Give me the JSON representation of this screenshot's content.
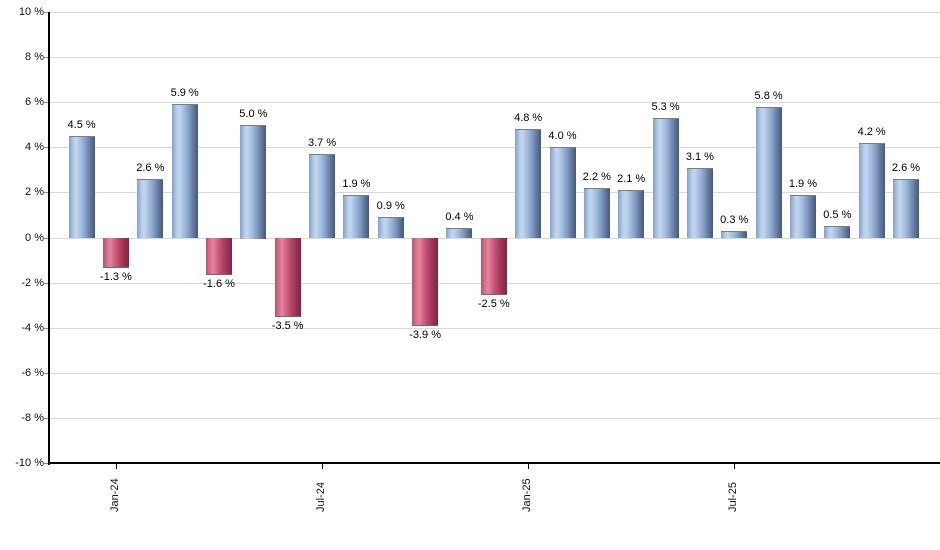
{
  "chart_data": {
    "type": "bar",
    "title": "",
    "xlabel": "",
    "ylabel": "",
    "unit": "%",
    "values": [
      4.5,
      -1.3,
      2.6,
      5.9,
      -1.6,
      5.0,
      -3.5,
      3.7,
      1.9,
      0.9,
      -3.9,
      0.4,
      -2.5,
      4.8,
      4.0,
      2.2,
      2.1,
      5.3,
      3.1,
      0.3,
      5.8,
      1.9,
      0.5,
      4.2,
      2.6
    ],
    "bar_labels": [
      "4.5 %",
      "-1.3 %",
      "2.6 %",
      "5.9 %",
      "-1.6 %",
      "5.0 %",
      "-3.5 %",
      "3.7 %",
      "1.9 %",
      "0.9 %",
      "-3.9 %",
      "0.4 %",
      "-2.5 %",
      "4.8 %",
      "4.0 %",
      "2.2 %",
      "2.1 %",
      "5.3 %",
      "3.1 %",
      "0.3 %",
      "5.8 %",
      "1.9 %",
      "0.5 %",
      "4.2 %",
      "2.6 %"
    ],
    "x_ticks": [
      {
        "label": "Jan-24",
        "bar_index": 1
      },
      {
        "label": "Jul-24",
        "bar_index": 7
      },
      {
        "label": "Jan-25",
        "bar_index": 13
      },
      {
        "label": "Jul-25",
        "bar_index": 19
      }
    ],
    "y_ticks": [
      {
        "label": "10 %",
        "value": 10
      },
      {
        "label": "8 %",
        "value": 8
      },
      {
        "label": "6 %",
        "value": 6
      },
      {
        "label": "4 %",
        "value": 4
      },
      {
        "label": "2 %",
        "value": 2
      },
      {
        "label": "0 %",
        "value": 0
      },
      {
        "label": "-2 %",
        "value": -2
      },
      {
        "label": "-4 %",
        "value": -4
      },
      {
        "label": "-6 %",
        "value": -6
      },
      {
        "label": "-8 %",
        "value": -8
      },
      {
        "label": "-10 %",
        "value": -10
      }
    ],
    "ylim": [
      -10,
      10
    ],
    "grid": true,
    "legend": false,
    "colors": {
      "positive_bar": "#7aa1d2",
      "positive_bar_highlight": "#c3d6ec",
      "positive_bar_dark": "#47597c",
      "negative_bar": "#c14e6e",
      "negative_bar_highlight": "#e2849c",
      "negative_bar_dark": "#7c2744",
      "gridline": "#d9d9d9",
      "axis": "#000000",
      "label_text": "#111111",
      "background": "#ffffff"
    }
  }
}
